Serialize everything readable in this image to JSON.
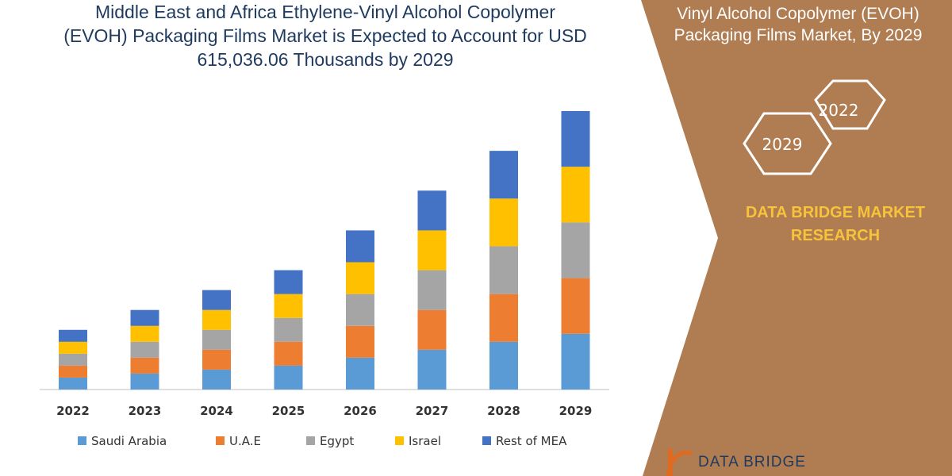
{
  "header": {
    "title_lines": [
      "Middle East and Africa Ethylene-Vinyl Alcohol Copolymer",
      "(EVOH) Packaging Films Market is Expected to Account for USD",
      "615,036.06 Thousands by 2029"
    ]
  },
  "side_panel": {
    "title_lines": [
      "Vinyl Alcohol Copolymer (EVOH)",
      "Packaging Films Market, By 2029"
    ],
    "hex_years": [
      "2022",
      "2029"
    ],
    "brand_lines": [
      "DATA BRIDGE MARKET",
      "RESEARCH"
    ],
    "logo_text": "DATA BRIDGE",
    "panel_color": "#b07c52",
    "brand_color": "#f6c33b"
  },
  "chart_data": {
    "type": "bar",
    "stacked": true,
    "categories": [
      "2022",
      "2023",
      "2024",
      "2025",
      "2026",
      "2027",
      "2028",
      "2029"
    ],
    "series": [
      {
        "name": "Saudi Arabia",
        "color": "#5b9bd5",
        "values": [
          15,
          20,
          25,
          30,
          40,
          50,
          60,
          70
        ]
      },
      {
        "name": "U.A.E",
        "color": "#ed7d31",
        "values": [
          15,
          20,
          25,
          30,
          40,
          50,
          60,
          70
        ]
      },
      {
        "name": "Egypt",
        "color": "#a5a5a5",
        "values": [
          15,
          20,
          25,
          30,
          40,
          50,
          60,
          70
        ]
      },
      {
        "name": "Israel",
        "color": "#ffc000",
        "values": [
          15,
          20,
          25,
          30,
          40,
          50,
          60,
          70
        ]
      },
      {
        "name": "Rest of MEA",
        "color": "#4472c4",
        "values": [
          15,
          20,
          25,
          30,
          40,
          50,
          60,
          70
        ]
      }
    ],
    "ylim": [
      0,
      350
    ],
    "legend_position": "bottom",
    "grid": false
  }
}
